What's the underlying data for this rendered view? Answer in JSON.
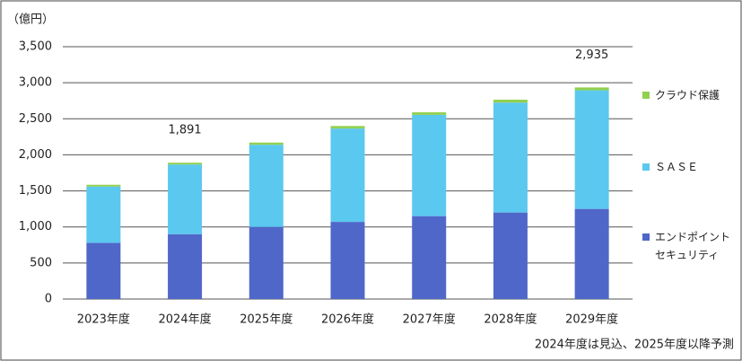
{
  "chart_data": {
    "type": "stacked_bar",
    "unit": "（億円）",
    "note": "2024年度は見込、2025年度以降予測",
    "categories": [
      "2023年度",
      "2024年度",
      "2025年度",
      "2026年度",
      "2027年度",
      "2028年度",
      "2029年度"
    ],
    "series": [
      {
        "name": "エンドポイントセキュリティ",
        "color": "#4f67c8",
        "values": [
          780,
          900,
          1000,
          1070,
          1150,
          1200,
          1250
        ]
      },
      {
        "name": "ＳＡＳＥ",
        "color": "#5bc8f0",
        "values": [
          780,
          966,
          1140,
          1295,
          1405,
          1525,
          1645
        ]
      },
      {
        "name": "クラウド保護",
        "color": "#92d050",
        "values": [
          25,
          25,
          30,
          35,
          35,
          40,
          40
        ]
      }
    ],
    "annotations": [
      {
        "category": "2024年度",
        "value": 1891,
        "label": "1,891"
      },
      {
        "category": "2029年度",
        "value": 2935,
        "label": "2,935"
      }
    ],
    "ylim": [
      0,
      3500
    ],
    "yticks": [
      0,
      500,
      {
        "value": 1000,
        "label": "1,000"
      },
      {
        "value": 1500,
        "label": "1,500"
      },
      {
        "value": 2000,
        "label": "2,000"
      },
      {
        "value": 2500,
        "label": "2,500"
      },
      {
        "value": 3000,
        "label": "3,000"
      },
      {
        "value": 3500,
        "label": "3,500"
      }
    ],
    "grid": true
  }
}
